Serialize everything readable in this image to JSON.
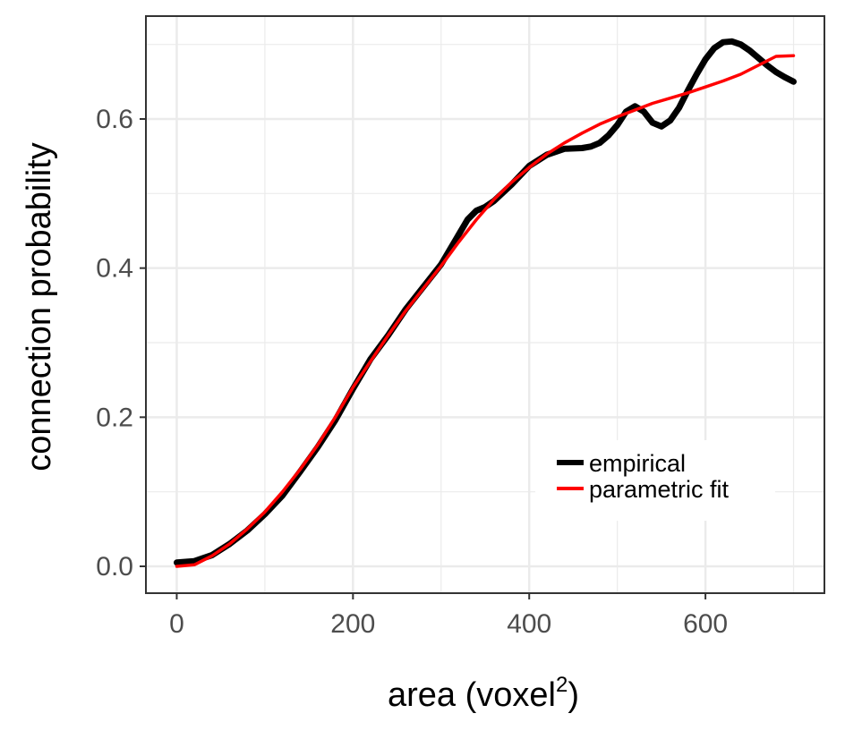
{
  "chart_data": {
    "type": "line",
    "title": "",
    "xlabel": "area (voxel",
    "xlabel_superscript": "2",
    "xlabel_suffix": ")",
    "ylabel": "connection probability",
    "xlim": [
      -35,
      735
    ],
    "ylim": [
      -0.036,
      0.738
    ],
    "x_ticks": [
      0,
      200,
      400,
      600
    ],
    "x_tick_labels": [
      "0",
      "200",
      "400",
      "600"
    ],
    "x_minor": [
      100,
      300,
      500,
      700
    ],
    "y_ticks": [
      0.0,
      0.2,
      0.4,
      0.6
    ],
    "y_tick_labels": [
      "0.0",
      "0.2",
      "0.4",
      "0.6"
    ],
    "y_minor": [
      0.1,
      0.3,
      0.5,
      0.7
    ],
    "grid": true,
    "legend_position": "bottom-right",
    "series": [
      {
        "name": "empirical",
        "color": "#000000",
        "x": [
          0,
          20,
          40,
          60,
          80,
          100,
          120,
          140,
          160,
          180,
          200,
          220,
          240,
          260,
          280,
          300,
          320,
          330,
          340,
          350,
          360,
          380,
          400,
          420,
          440,
          460,
          470,
          480,
          490,
          500,
          510,
          520,
          530,
          540,
          550,
          560,
          570,
          580,
          590,
          600,
          610,
          620,
          630,
          640,
          650,
          660,
          670,
          680,
          690,
          700
        ],
        "y": [
          0.005,
          0.007,
          0.015,
          0.03,
          0.048,
          0.07,
          0.095,
          0.127,
          0.16,
          0.196,
          0.238,
          0.278,
          0.31,
          0.345,
          0.375,
          0.405,
          0.445,
          0.465,
          0.477,
          0.482,
          0.49,
          0.512,
          0.537,
          0.552,
          0.56,
          0.561,
          0.563,
          0.568,
          0.578,
          0.592,
          0.61,
          0.617,
          0.61,
          0.595,
          0.59,
          0.598,
          0.615,
          0.638,
          0.66,
          0.68,
          0.695,
          0.703,
          0.704,
          0.7,
          0.692,
          0.682,
          0.672,
          0.663,
          0.656,
          0.65
        ]
      },
      {
        "name": "parametric fit",
        "color": "#ff0000",
        "x": [
          0,
          20,
          40,
          60,
          80,
          100,
          120,
          140,
          160,
          180,
          200,
          220,
          240,
          260,
          280,
          300,
          320,
          340,
          360,
          380,
          400,
          420,
          440,
          460,
          480,
          500,
          520,
          540,
          560,
          580,
          600,
          620,
          640,
          660,
          680,
          700
        ],
        "y": [
          0.0,
          0.002,
          0.014,
          0.03,
          0.05,
          0.073,
          0.1,
          0.13,
          0.163,
          0.2,
          0.24,
          0.275,
          0.31,
          0.343,
          0.373,
          0.403,
          0.435,
          0.465,
          0.492,
          0.515,
          0.535,
          0.553,
          0.568,
          0.581,
          0.593,
          0.603,
          0.612,
          0.621,
          0.628,
          0.635,
          0.643,
          0.651,
          0.66,
          0.672,
          0.684,
          0.685
        ]
      }
    ]
  }
}
